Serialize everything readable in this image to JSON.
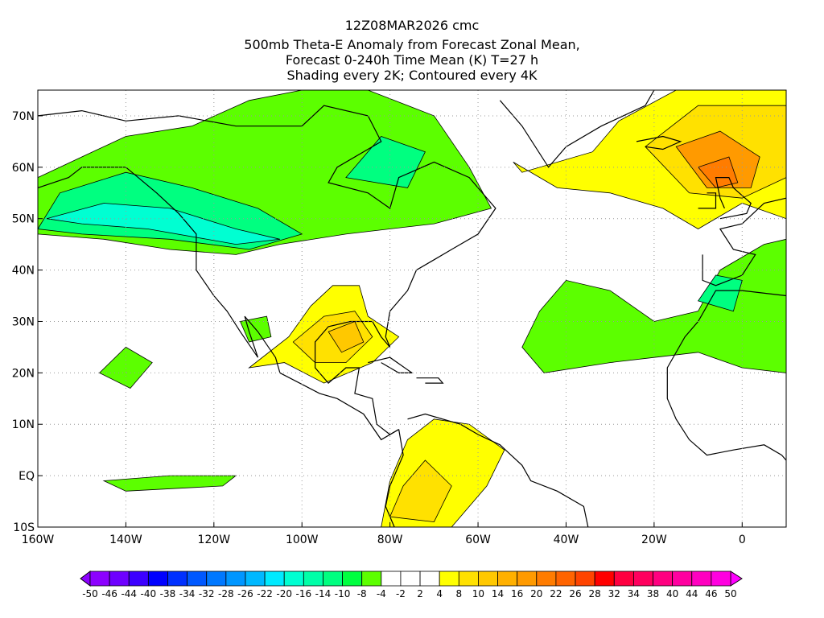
{
  "title": {
    "line1": "12Z08MAR2026 cmc",
    "line2": "500mb Theta-E Anomaly from Forecast Zonal Mean,",
    "line3": "Forecast 0-240h Time Mean (K) T=27 h",
    "line4": "Shading every 2K; Contoured every 4K"
  },
  "map": {
    "lon_range": [
      -160,
      10
    ],
    "lat_range": [
      -10,
      75
    ],
    "lon_ticks": [
      {
        "value": -160,
        "label": "160W"
      },
      {
        "value": -140,
        "label": "140W"
      },
      {
        "value": -120,
        "label": "120W"
      },
      {
        "value": -100,
        "label": "100W"
      },
      {
        "value": -80,
        "label": "80W"
      },
      {
        "value": -60,
        "label": "60W"
      },
      {
        "value": -40,
        "label": "40W"
      },
      {
        "value": -20,
        "label": "20W"
      },
      {
        "value": 0,
        "label": "0"
      }
    ],
    "lat_ticks": [
      {
        "value": 70,
        "label": "70N"
      },
      {
        "value": 60,
        "label": "60N"
      },
      {
        "value": 50,
        "label": "50N"
      },
      {
        "value": 40,
        "label": "40N"
      },
      {
        "value": 30,
        "label": "30N"
      },
      {
        "value": 20,
        "label": "20N"
      },
      {
        "value": 10,
        "label": "10N"
      },
      {
        "value": 0,
        "label": "EQ"
      },
      {
        "value": -10,
        "label": "10S"
      }
    ]
  },
  "colorbar": {
    "labels": [
      "-50",
      "-46",
      "-44",
      "-40",
      "-38",
      "-34",
      "-32",
      "-28",
      "-26",
      "-22",
      "-20",
      "-16",
      "-14",
      "-10",
      "-8",
      "-4",
      "-2",
      "2",
      "4",
      "8",
      "10",
      "14",
      "16",
      "20",
      "22",
      "26",
      "28",
      "32",
      "34",
      "38",
      "40",
      "44",
      "46",
      "50"
    ],
    "colors": [
      "#8c00ff",
      "#6e00ff",
      "#3c00ff",
      "#0000ff",
      "#0030ff",
      "#0058ff",
      "#0078ff",
      "#0096ff",
      "#00b8ff",
      "#00eaff",
      "#00ffd2",
      "#00ffa8",
      "#00ff80",
      "#00ff40",
      "#5cff00",
      "#ffffff",
      "#ffffff",
      "#ffffff",
      "#ffff00",
      "#ffe100",
      "#ffc800",
      "#ffb000",
      "#ff9a00",
      "#ff7c00",
      "#ff6400",
      "#ff4400",
      "#ff0000",
      "#ff0040",
      "#ff005e",
      "#ff0080",
      "#ff00a0",
      "#ff00c0",
      "#ff00e0"
    ],
    "under_color": "#8c00ff",
    "over_color": "#ff00ff"
  }
}
